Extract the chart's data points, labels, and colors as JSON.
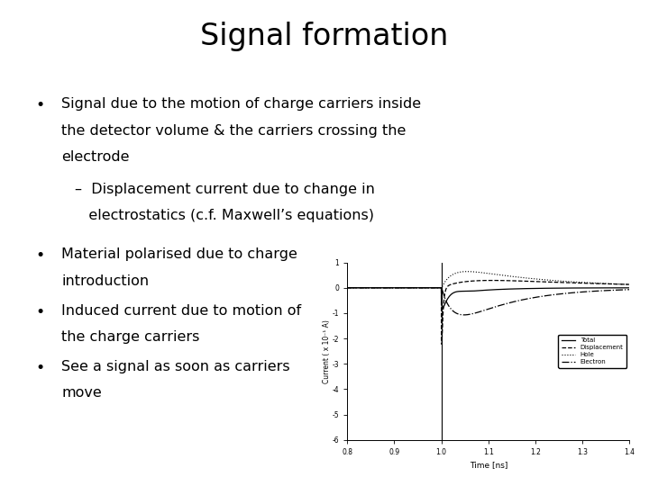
{
  "title": "Signal formation",
  "title_fontsize": 24,
  "background_color": "#ffffff",
  "bullet1_line1": "Signal due to the motion of charge carriers inside",
  "bullet1_line2": "the detector volume & the carriers crossing the",
  "bullet1_line3": "electrode",
  "sub_bullet1_line1": "–  Displacement current due to change in",
  "sub_bullet1_line2": "   electrostatics (c.f. Maxwell’s equations)",
  "bullet2": "Material polarised due to charge\nintroduction",
  "bullet3": "Induced current due to motion of\nthe charge carriers",
  "bullet4": "See a signal as soon as carriers\nmove",
  "bullet_fontsize": 11.5,
  "plot_xlabel": "Time [ns]",
  "plot_ylabel": "Current ( x 10⁻¹ A)",
  "plot_xlim": [
    0.8,
    1.4
  ],
  "plot_ylim": [
    -6,
    1
  ],
  "plot_xticks": [
    0.8,
    0.9,
    1.0,
    1.1,
    1.2,
    1.3,
    1.4
  ],
  "plot_yticks": [
    -6,
    -5,
    -4,
    -3,
    -2,
    -1,
    0,
    1
  ],
  "legend_entries": [
    "Total",
    "Displacement",
    "Hole",
    "Electron"
  ]
}
